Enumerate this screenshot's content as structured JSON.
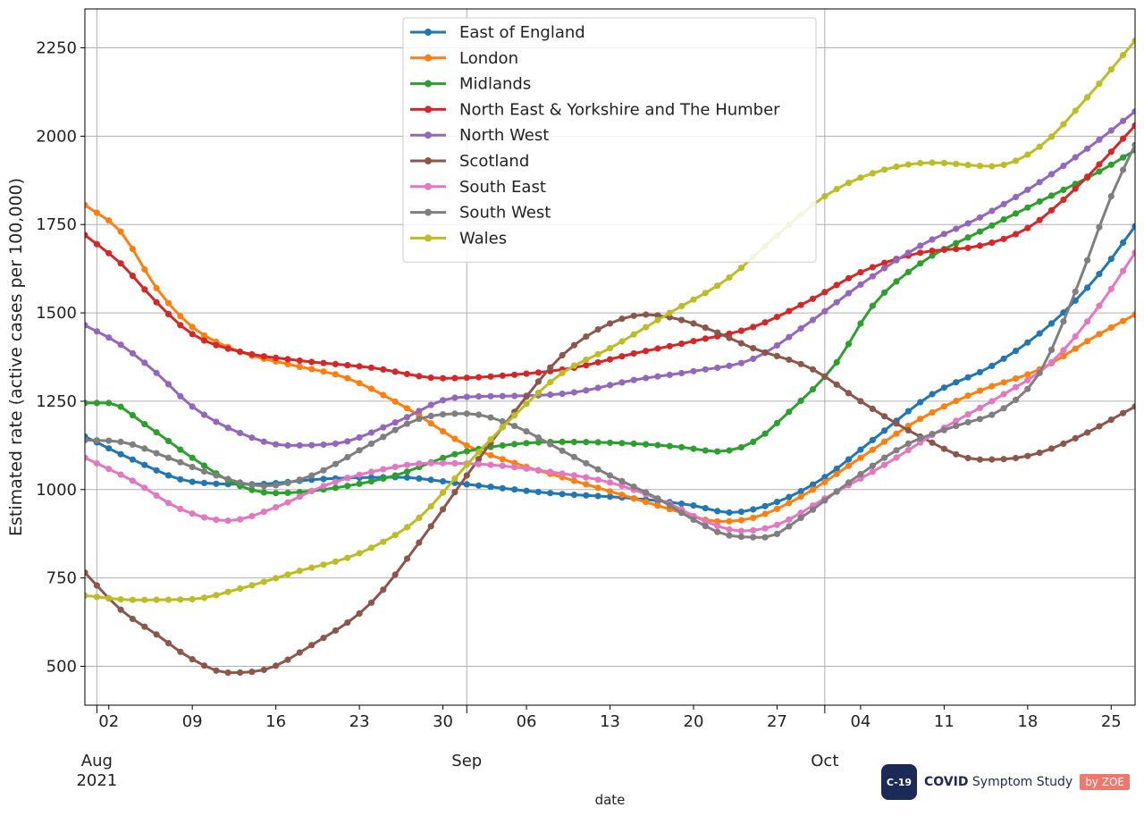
{
  "chart_data": {
    "type": "line",
    "xlabel": "date",
    "ylabel": "Estimated rate (active cases per 100,000)",
    "x_start": "2021-07-31",
    "x_end": "2021-10-27",
    "ylim": [
      390,
      2360
    ],
    "y_ticks": [
      500,
      750,
      1000,
      1250,
      1500,
      1750,
      2000,
      2250
    ],
    "x_tick_labels": [
      {
        "date": "2021-08-02",
        "label": "02"
      },
      {
        "date": "2021-08-09",
        "label": "09"
      },
      {
        "date": "2021-08-16",
        "label": "16"
      },
      {
        "date": "2021-08-23",
        "label": "23"
      },
      {
        "date": "2021-08-30",
        "label": "30"
      },
      {
        "date": "2021-09-06",
        "label": "06"
      },
      {
        "date": "2021-09-13",
        "label": "13"
      },
      {
        "date": "2021-09-20",
        "label": "20"
      },
      {
        "date": "2021-09-27",
        "label": "27"
      },
      {
        "date": "2021-10-04",
        "label": "04"
      },
      {
        "date": "2021-10-11",
        "label": "11"
      },
      {
        "date": "2021-10-18",
        "label": "18"
      },
      {
        "date": "2021-10-25",
        "label": "25"
      }
    ],
    "x_major_labels": [
      {
        "date": "2021-08-01",
        "label": "Aug",
        "sublabel": "2021"
      },
      {
        "date": "2021-09-01",
        "label": "Sep",
        "sublabel": ""
      },
      {
        "date": "2021-10-01",
        "label": "Oct",
        "sublabel": ""
      }
    ],
    "grid": true,
    "legend_position": "top-center",
    "series": [
      {
        "name": "East of England",
        "color": "#1f77b4",
        "anchors": [
          [
            "2021-07-31",
            1150
          ],
          [
            "2021-08-04",
            1085
          ],
          [
            "2021-08-09",
            1022
          ],
          [
            "2021-08-14",
            1015
          ],
          [
            "2021-08-20",
            1030
          ],
          [
            "2021-08-26",
            1035
          ],
          [
            "2021-09-01",
            1015
          ],
          [
            "2021-09-08",
            990
          ],
          [
            "2021-09-15",
            975
          ],
          [
            "2021-09-20",
            955
          ],
          [
            "2021-09-23",
            935
          ],
          [
            "2021-09-27",
            965
          ],
          [
            "2021-10-01",
            1035
          ],
          [
            "2021-10-05",
            1140
          ],
          [
            "2021-10-10",
            1270
          ],
          [
            "2021-10-15",
            1350
          ],
          [
            "2021-10-20",
            1470
          ],
          [
            "2021-10-24",
            1610
          ],
          [
            "2021-10-27",
            1745
          ]
        ]
      },
      {
        "name": "London",
        "color": "#ff7f0e",
        "anchors": [
          [
            "2021-07-31",
            1805
          ],
          [
            "2021-08-03",
            1730
          ],
          [
            "2021-08-06",
            1570
          ],
          [
            "2021-08-09",
            1460
          ],
          [
            "2021-08-13",
            1390
          ],
          [
            "2021-08-17",
            1355
          ],
          [
            "2021-08-22",
            1315
          ],
          [
            "2021-08-27",
            1230
          ],
          [
            "2021-09-01",
            1125
          ],
          [
            "2021-09-05",
            1075
          ],
          [
            "2021-09-10",
            1025
          ],
          [
            "2021-09-15",
            975
          ],
          [
            "2021-09-19",
            935
          ],
          [
            "2021-09-22",
            910
          ],
          [
            "2021-09-25",
            920
          ],
          [
            "2021-09-29",
            980
          ],
          [
            "2021-10-04",
            1090
          ],
          [
            "2021-10-09",
            1200
          ],
          [
            "2021-10-14",
            1280
          ],
          [
            "2021-10-19",
            1340
          ],
          [
            "2021-10-24",
            1440
          ],
          [
            "2021-10-27",
            1495
          ]
        ]
      },
      {
        "name": "Midlands",
        "color": "#2ca02c",
        "anchors": [
          [
            "2021-07-31",
            1245
          ],
          [
            "2021-08-02",
            1245
          ],
          [
            "2021-08-05",
            1185
          ],
          [
            "2021-08-09",
            1090
          ],
          [
            "2021-08-13",
            1010
          ],
          [
            "2021-08-16",
            990
          ],
          [
            "2021-08-21",
            1005
          ],
          [
            "2021-08-26",
            1040
          ],
          [
            "2021-08-31",
            1100
          ],
          [
            "2021-09-04",
            1125
          ],
          [
            "2021-09-09",
            1135
          ],
          [
            "2021-09-15",
            1130
          ],
          [
            "2021-09-19",
            1120
          ],
          [
            "2021-09-22",
            1108
          ],
          [
            "2021-09-25",
            1135
          ],
          [
            "2021-09-28",
            1220
          ],
          [
            "2021-10-02",
            1360
          ],
          [
            "2021-10-05",
            1520
          ],
          [
            "2021-10-09",
            1640
          ],
          [
            "2021-10-14",
            1730
          ],
          [
            "2021-10-19",
            1815
          ],
          [
            "2021-10-24",
            1900
          ],
          [
            "2021-10-27",
            1960
          ]
        ]
      },
      {
        "name": "North East & Yorkshire and The Humber",
        "color": "#d62728",
        "anchors": [
          [
            "2021-07-31",
            1720
          ],
          [
            "2021-08-03",
            1640
          ],
          [
            "2021-08-06",
            1530
          ],
          [
            "2021-08-09",
            1440
          ],
          [
            "2021-08-13",
            1390
          ],
          [
            "2021-08-18",
            1365
          ],
          [
            "2021-08-24",
            1345
          ],
          [
            "2021-08-30",
            1315
          ],
          [
            "2021-09-05",
            1325
          ],
          [
            "2021-09-10",
            1345
          ],
          [
            "2021-09-15",
            1385
          ],
          [
            "2021-09-20",
            1420
          ],
          [
            "2021-09-25",
            1460
          ],
          [
            "2021-09-30",
            1540
          ],
          [
            "2021-10-04",
            1615
          ],
          [
            "2021-10-09",
            1670
          ],
          [
            "2021-10-14",
            1690
          ],
          [
            "2021-10-18",
            1740
          ],
          [
            "2021-10-21",
            1820
          ],
          [
            "2021-10-24",
            1920
          ],
          [
            "2021-10-27",
            2030
          ]
        ]
      },
      {
        "name": "North West",
        "color": "#9467bd",
        "anchors": [
          [
            "2021-07-31",
            1465
          ],
          [
            "2021-08-03",
            1410
          ],
          [
            "2021-08-06",
            1330
          ],
          [
            "2021-08-09",
            1235
          ],
          [
            "2021-08-13",
            1160
          ],
          [
            "2021-08-17",
            1125
          ],
          [
            "2021-08-21",
            1130
          ],
          [
            "2021-08-26",
            1190
          ],
          [
            "2021-08-31",
            1260
          ],
          [
            "2021-09-05",
            1265
          ],
          [
            "2021-09-10",
            1275
          ],
          [
            "2021-09-15",
            1310
          ],
          [
            "2021-09-20",
            1335
          ],
          [
            "2021-09-25",
            1370
          ],
          [
            "2021-09-30",
            1480
          ],
          [
            "2021-10-04",
            1580
          ],
          [
            "2021-10-09",
            1690
          ],
          [
            "2021-10-14",
            1770
          ],
          [
            "2021-10-19",
            1870
          ],
          [
            "2021-10-24",
            1990
          ],
          [
            "2021-10-27",
            2070
          ]
        ]
      },
      {
        "name": "Scotland",
        "color": "#8c564b",
        "anchors": [
          [
            "2021-07-31",
            765
          ],
          [
            "2021-08-03",
            660
          ],
          [
            "2021-08-06",
            590
          ],
          [
            "2021-08-09",
            520
          ],
          [
            "2021-08-12",
            482
          ],
          [
            "2021-08-15",
            490
          ],
          [
            "2021-08-19",
            560
          ],
          [
            "2021-08-24",
            680
          ],
          [
            "2021-08-28",
            850
          ],
          [
            "2021-09-01",
            1040
          ],
          [
            "2021-09-05",
            1220
          ],
          [
            "2021-09-09",
            1380
          ],
          [
            "2021-09-13",
            1470
          ],
          [
            "2021-09-16",
            1495
          ],
          [
            "2021-09-20",
            1470
          ],
          [
            "2021-09-25",
            1400
          ],
          [
            "2021-09-30",
            1340
          ],
          [
            "2021-10-04",
            1250
          ],
          [
            "2021-10-09",
            1150
          ],
          [
            "2021-10-14",
            1085
          ],
          [
            "2021-10-18",
            1095
          ],
          [
            "2021-10-22",
            1145
          ],
          [
            "2021-10-27",
            1235
          ]
        ]
      },
      {
        "name": "South East",
        "color": "#e377c2",
        "anchors": [
          [
            "2021-07-31",
            1090
          ],
          [
            "2021-08-04",
            1025
          ],
          [
            "2021-08-08",
            945
          ],
          [
            "2021-08-12",
            912
          ],
          [
            "2021-08-16",
            950
          ],
          [
            "2021-08-20",
            1010
          ],
          [
            "2021-08-24",
            1050
          ],
          [
            "2021-08-29",
            1075
          ],
          [
            "2021-09-03",
            1070
          ],
          [
            "2021-09-08",
            1050
          ],
          [
            "2021-09-13",
            1020
          ],
          [
            "2021-09-18",
            960
          ],
          [
            "2021-09-21",
            910
          ],
          [
            "2021-09-24",
            883
          ],
          [
            "2021-09-27",
            900
          ],
          [
            "2021-10-01",
            975
          ],
          [
            "2021-10-06",
            1070
          ],
          [
            "2021-10-11",
            1175
          ],
          [
            "2021-10-16",
            1270
          ],
          [
            "2021-10-20",
            1360
          ],
          [
            "2021-10-24",
            1520
          ],
          [
            "2021-10-27",
            1670
          ]
        ]
      },
      {
        "name": "South West",
        "color": "#7f7f7f",
        "anchors": [
          [
            "2021-07-31",
            1140
          ],
          [
            "2021-08-03",
            1135
          ],
          [
            "2021-08-07",
            1090
          ],
          [
            "2021-08-11",
            1040
          ],
          [
            "2021-08-15",
            1010
          ],
          [
            "2021-08-19",
            1040
          ],
          [
            "2021-08-24",
            1130
          ],
          [
            "2021-08-28",
            1200
          ],
          [
            "2021-09-01",
            1215
          ],
          [
            "2021-09-05",
            1180
          ],
          [
            "2021-09-09",
            1110
          ],
          [
            "2021-09-13",
            1040
          ],
          [
            "2021-09-17",
            975
          ],
          [
            "2021-09-20",
            915
          ],
          [
            "2021-09-23",
            870
          ],
          [
            "2021-09-26",
            865
          ],
          [
            "2021-09-29",
            920
          ],
          [
            "2021-10-03",
            1020
          ],
          [
            "2021-10-08",
            1130
          ],
          [
            "2021-10-12",
            1180
          ],
          [
            "2021-10-16",
            1230
          ],
          [
            "2021-10-19",
            1330
          ],
          [
            "2021-10-22",
            1560
          ],
          [
            "2021-10-25",
            1830
          ],
          [
            "2021-10-27",
            1975
          ]
        ]
      },
      {
        "name": "Wales",
        "color": "#bcbd22",
        "anchors": [
          [
            "2021-07-31",
            700
          ],
          [
            "2021-08-04",
            688
          ],
          [
            "2021-08-09",
            690
          ],
          [
            "2021-08-13",
            720
          ],
          [
            "2021-08-18",
            770
          ],
          [
            "2021-08-23",
            820
          ],
          [
            "2021-08-28",
            920
          ],
          [
            "2021-09-01",
            1070
          ],
          [
            "2021-09-05",
            1210
          ],
          [
            "2021-09-09",
            1330
          ],
          [
            "2021-09-13",
            1400
          ],
          [
            "2021-09-18",
            1500
          ],
          [
            "2021-09-23",
            1600
          ],
          [
            "2021-09-27",
            1720
          ],
          [
            "2021-10-01",
            1830
          ],
          [
            "2021-10-05",
            1895
          ],
          [
            "2021-10-10",
            1925
          ],
          [
            "2021-10-15",
            1915
          ],
          [
            "2021-10-19",
            1970
          ],
          [
            "2021-10-23",
            2110
          ],
          [
            "2021-10-27",
            2270
          ]
        ]
      }
    ]
  },
  "branding": {
    "badge_text": "C-19",
    "name_bold": "COVID",
    "name_rest": "Symptom Study",
    "zoe_text": "by ZOE"
  }
}
